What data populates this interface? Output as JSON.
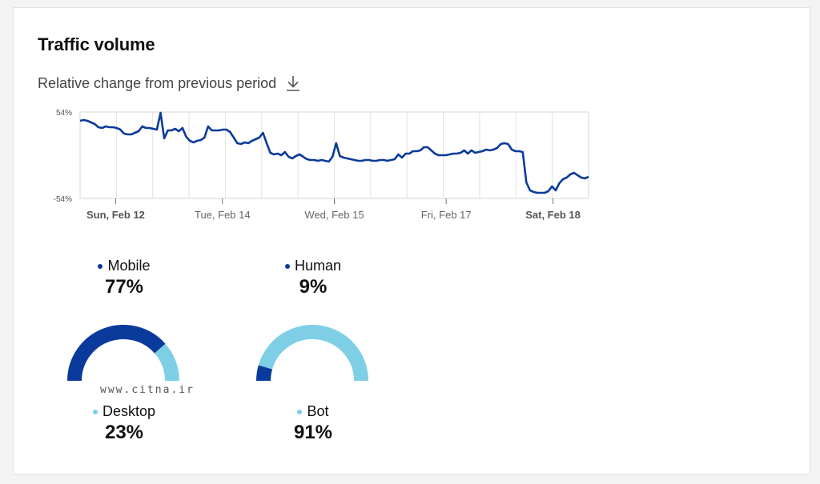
{
  "card": {
    "title": "Traffic volume",
    "subtitle": "Relative change from previous period"
  },
  "icons": {
    "download": "download-icon"
  },
  "colors": {
    "dark": "#0a3a9c",
    "light": "#7ecfe6"
  },
  "chart_data": {
    "type": "line",
    "ylim": [
      -54,
      54
    ],
    "y_tick_labels": [
      "54%",
      "-54%"
    ],
    "x_tick_labels": [
      {
        "label": "Sun, Feb 12",
        "bold": true
      },
      {
        "label": "Tue, Feb 14",
        "bold": false
      },
      {
        "label": "Wed, Feb 15",
        "bold": false
      },
      {
        "label": "Fri, Feb 17",
        "bold": false
      },
      {
        "label": "Sat, Feb 18",
        "bold": true
      }
    ],
    "series": [
      {
        "values": [
          43,
          44,
          43,
          41,
          39,
          35,
          34,
          36,
          35,
          35,
          34,
          32,
          27,
          26,
          26,
          28,
          30,
          36,
          34,
          34,
          33,
          32,
          53,
          21,
          31,
          31,
          33,
          30,
          34,
          23,
          18,
          16,
          18,
          19,
          22,
          36,
          31,
          31,
          31,
          32,
          32,
          29,
          22,
          15,
          14,
          16,
          15,
          18,
          20,
          22,
          28,
          15,
          3,
          1,
          2,
          0,
          4,
          -2,
          -4,
          -1,
          1,
          -2,
          -5,
          -6,
          -6,
          -7,
          -6,
          -7,
          -8,
          -2,
          15,
          -1,
          -3,
          -4,
          -5,
          -6,
          -7,
          -7,
          -6,
          -6,
          -7,
          -7,
          -6,
          -6,
          -7,
          -6,
          -5,
          1,
          -3,
          2,
          2,
          5,
          5,
          6,
          10,
          10,
          6,
          2,
          0,
          0,
          0,
          1,
          2,
          2,
          3,
          6,
          2,
          6,
          3,
          4,
          5,
          7,
          6,
          7,
          9,
          14,
          15,
          14,
          7,
          5,
          5,
          4,
          -34,
          -44,
          -46,
          -47,
          -47,
          -47,
          -45,
          -39,
          -44,
          -35,
          -30,
          -28,
          -24,
          -22,
          -25,
          -28,
          -29,
          -27
        ]
      }
    ]
  },
  "metrics": {
    "mobile": {
      "label": "Mobile",
      "value": "77%",
      "fraction": 0.77
    },
    "desktop": {
      "label": "Desktop",
      "value": "23%",
      "fraction": 0.23
    },
    "human": {
      "label": "Human",
      "value": "9%",
      "fraction": 0.09
    },
    "bot": {
      "label": "Bot",
      "value": "91%",
      "fraction": 0.91
    }
  },
  "watermark": "www.citna.ir"
}
